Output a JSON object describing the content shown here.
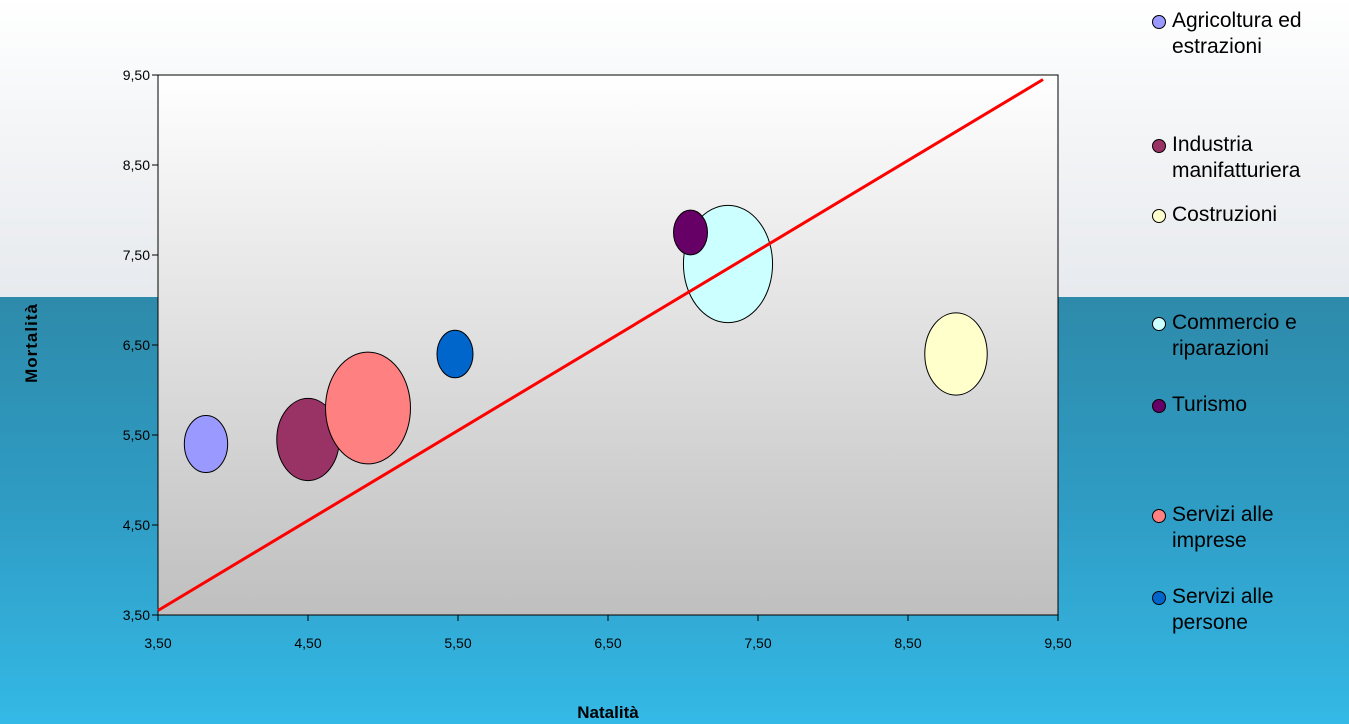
{
  "chart_data": {
    "type": "bubble",
    "xlabel": "Natalità",
    "ylabel": "Mortalità",
    "xlim": [
      3.5,
      9.5
    ],
    "ylim": [
      3.5,
      9.5
    ],
    "x_ticks": [
      "3,50",
      "4,50",
      "5,50",
      "6,50",
      "7,50",
      "8,50",
      "9,50"
    ],
    "y_ticks": [
      "3,50",
      "4,50",
      "5,50",
      "6,50",
      "7,50",
      "8,50",
      "9,50"
    ],
    "grid": false,
    "legend_position": "right",
    "series": [
      {
        "name": "Agricoltura ed estrazioni",
        "x": 3.82,
        "y": 5.4,
        "size": 1.3,
        "color": "#9999ff"
      },
      {
        "name": "Industria manifatturiera",
        "x": 4.5,
        "y": 5.45,
        "size": 2.7,
        "color": "#993366"
      },
      {
        "name": "Costruzioni",
        "x": 8.82,
        "y": 6.4,
        "size": 2.7,
        "color": "#ffffcc"
      },
      {
        "name": "Commercio e riparazioni",
        "x": 7.3,
        "y": 7.4,
        "size": 5.5,
        "color": "#ccffff"
      },
      {
        "name": "Turismo",
        "x": 7.05,
        "y": 7.75,
        "size": 0.8,
        "color": "#660066"
      },
      {
        "name": "Servizi alle imprese",
        "x": 4.9,
        "y": 5.8,
        "size": 5.0,
        "color": "#ff8080"
      },
      {
        "name": "Servizi alle persone",
        "x": 5.48,
        "y": 6.4,
        "size": 0.9,
        "color": "#0066cc"
      }
    ],
    "reference_line": {
      "x": [
        3.5,
        9.4
      ],
      "y": [
        3.55,
        9.45
      ],
      "color": "#ff0000"
    }
  }
}
